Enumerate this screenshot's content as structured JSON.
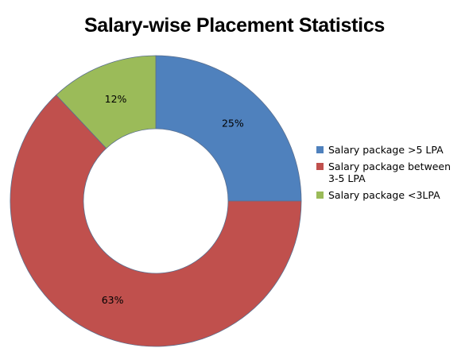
{
  "chart_data": {
    "type": "pie",
    "subtype": "donut",
    "title": "Salary-wise Placement Statistics",
    "legend_position": "right",
    "series": [
      {
        "name": "Salary package >5 LPA",
        "value": 25,
        "label": "25%",
        "color": "#4F81BD"
      },
      {
        "name": "Salary package between 3-5 LPA",
        "value": 63,
        "label": "63%",
        "color": "#C0504D"
      },
      {
        "name": "Salary package <3LPA",
        "value": 12,
        "label": "12%",
        "color": "#9BBB59"
      }
    ]
  },
  "legend": {
    "items": [
      {
        "line1": "Salary package >5 LPA",
        "line2": "",
        "color": "#4F81BD"
      },
      {
        "line1": "Salary package between",
        "line2": "3-5 LPA",
        "color": "#C0504D"
      },
      {
        "line1": "Salary package <3LPA",
        "line2": "",
        "color": "#9BBB59"
      }
    ]
  }
}
